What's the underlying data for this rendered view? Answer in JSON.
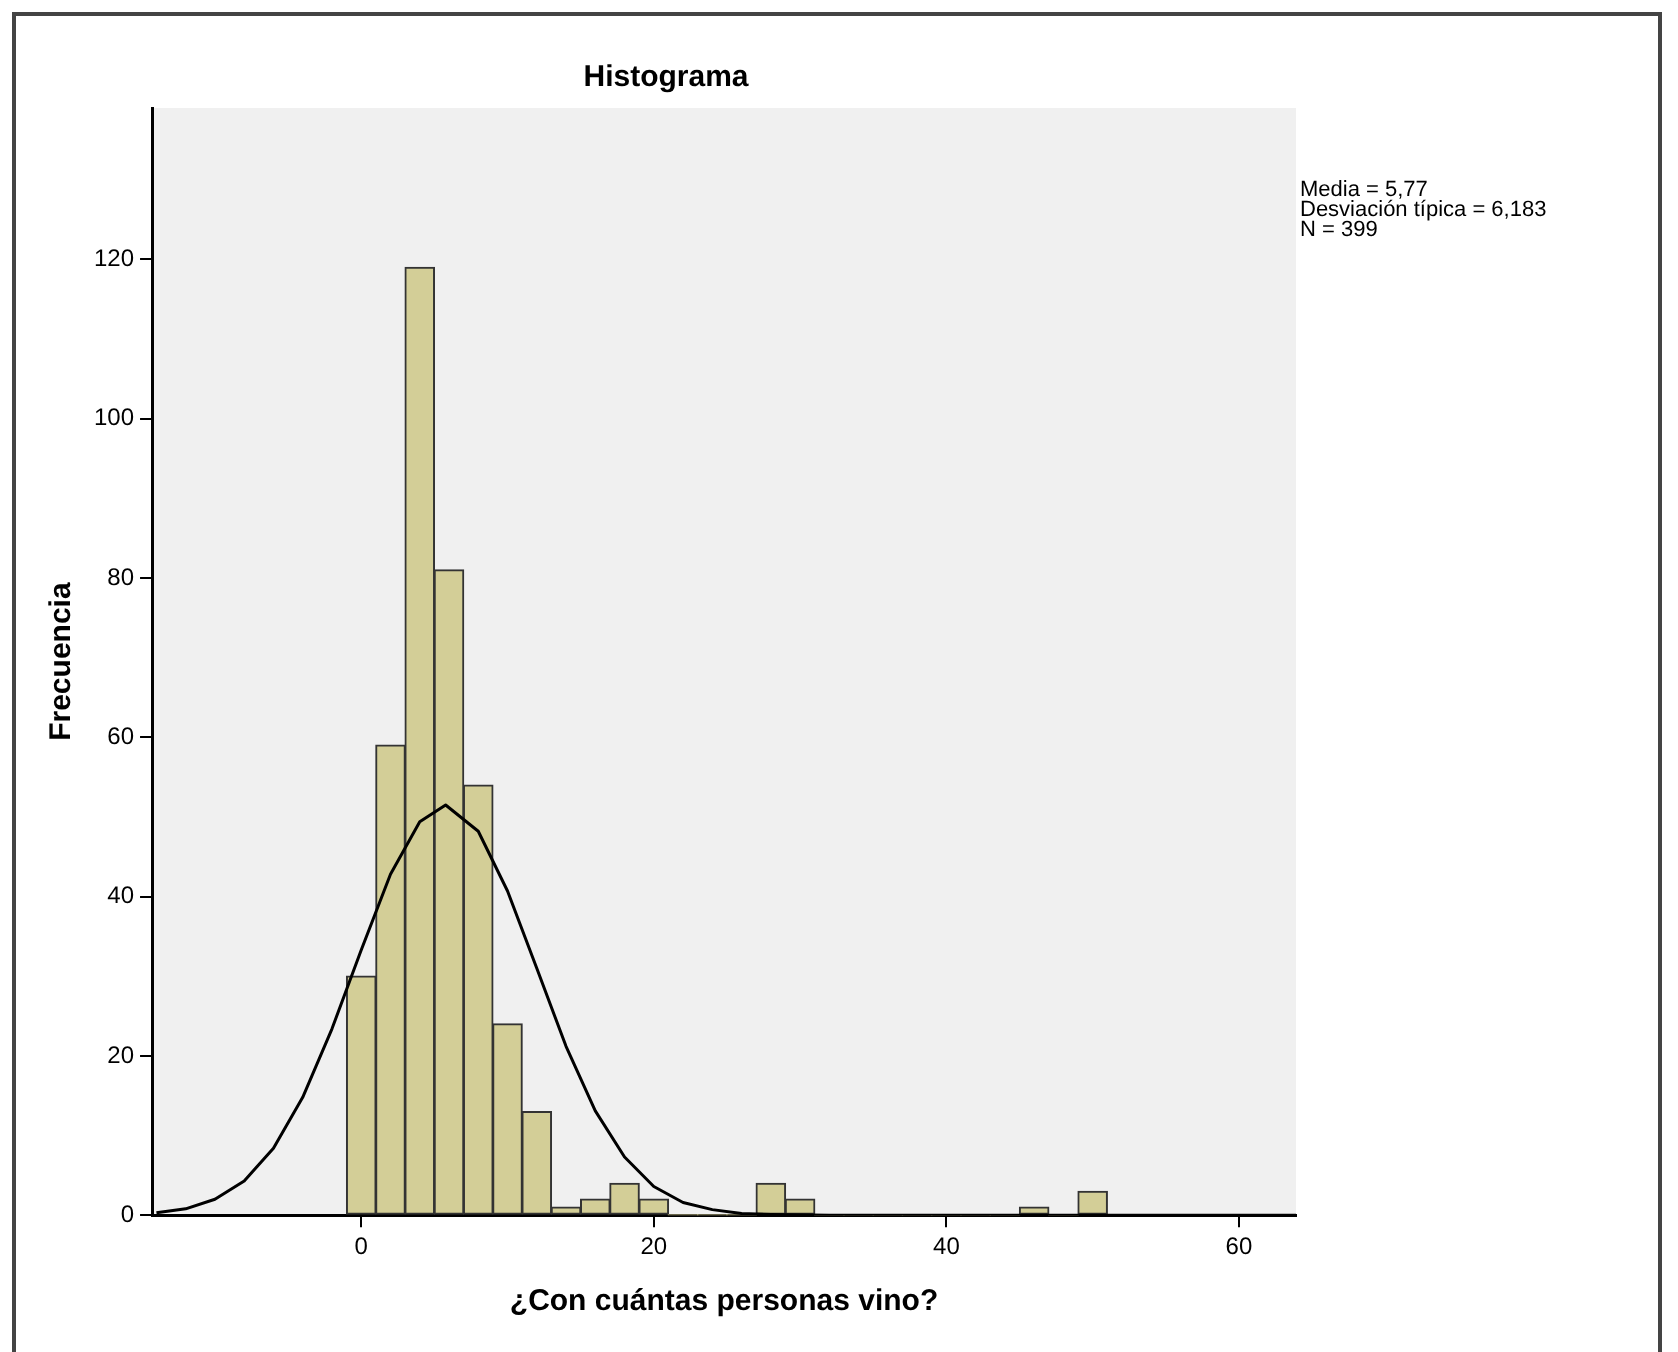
{
  "chart_data": {
    "type": "histogram",
    "title": "Histograma",
    "xlabel": "¿Con cuántas personas vino?",
    "ylabel": "Frecuencia",
    "bins": [
      -1,
      1,
      3,
      5,
      7,
      9,
      11,
      13,
      15,
      17,
      19,
      21,
      23,
      25,
      27,
      29,
      31,
      33,
      35,
      37,
      39,
      41,
      43,
      45,
      47,
      49,
      51
    ],
    "values": [
      30,
      59,
      119,
      81,
      54,
      24,
      13,
      1,
      2,
      4,
      2,
      0,
      0,
      0,
      4,
      2,
      0,
      0,
      0,
      0,
      0,
      0,
      0,
      1,
      0,
      3
    ],
    "color": "#d3ce97",
    "series": [
      {
        "type": "line",
        "color": "#000000",
        "x": [
          -14,
          -12,
          -10,
          -8,
          -6,
          -4,
          -2,
          0,
          2,
          4,
          5.77,
          8,
          10,
          12,
          14,
          16,
          18,
          20,
          22,
          24,
          26,
          28,
          32,
          63.9
        ],
        "values": [
          0.3,
          0.8,
          2,
          4.3,
          8.4,
          14.8,
          23.4,
          33.3,
          42.8,
          49.4,
          51.5,
          48.2,
          40.7,
          31,
          21.2,
          13.1,
          7.3,
          3.6,
          1.6,
          0.7,
          0.2,
          0.1,
          0,
          0
        ]
      }
    ],
    "marker": "none",
    "grid": false,
    "legend": false,
    "xlim": [
      -14.3,
      63.9
    ],
    "xticks": [
      0,
      20,
      40,
      60
    ],
    "ylim": [
      0,
      139
    ],
    "yticks": [
      0,
      20,
      40,
      60,
      80,
      100,
      120
    ],
    "annotations": [
      "Media = 5,77",
      "Desviación típica = 6,183",
      "N = 399"
    ]
  }
}
